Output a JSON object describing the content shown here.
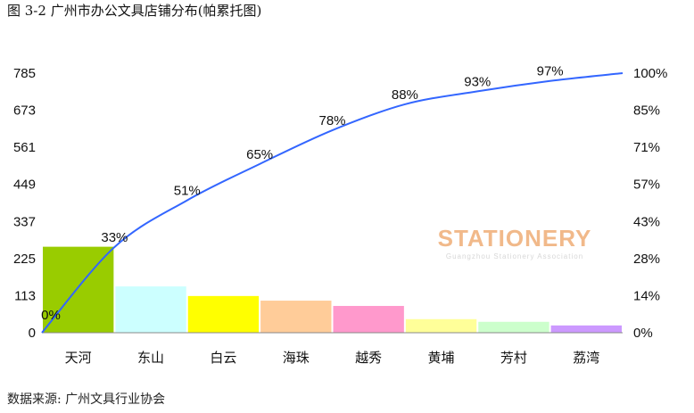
{
  "title": "图 3-2 广州市办公文具店铺分布(帕累托图)",
  "source": "数据来源: 广州文具行业协会",
  "watermark": {
    "main": "STATIONERY",
    "sub": "Guangzhou Stationery Association"
  },
  "chart_data": {
    "type": "bar",
    "categories": [
      "天河",
      "东山",
      "白云",
      "海珠",
      "越秀",
      "黄埔",
      "芳村",
      "荔湾"
    ],
    "values": [
      260,
      140,
      111,
      97,
      81,
      41,
      33,
      22
    ],
    "cumulative_percent_labels": [
      "0%",
      "33%",
      "51%",
      "65%",
      "78%",
      "88%",
      "93%",
      "97%"
    ],
    "cumulative_line_percent": [
      0,
      33,
      51,
      65,
      78,
      88,
      93,
      97,
      100
    ],
    "left_axis_ticks": [
      "0",
      "113",
      "225",
      "337",
      "449",
      "561",
      "673",
      "785"
    ],
    "right_axis_ticks": [
      "0%",
      "14%",
      "28%",
      "43%",
      "57%",
      "71%",
      "85%",
      "100%"
    ],
    "ylim": [
      0,
      785
    ],
    "y2lim": [
      0,
      100
    ],
    "bar_colors": [
      "#99cc00",
      "#ccffff",
      "#ffff00",
      "#ffcc99",
      "#ff99cc",
      "#ffff99",
      "#ccffcc",
      "#cc99ff"
    ],
    "line_color": "#3366ff",
    "grid": false
  }
}
